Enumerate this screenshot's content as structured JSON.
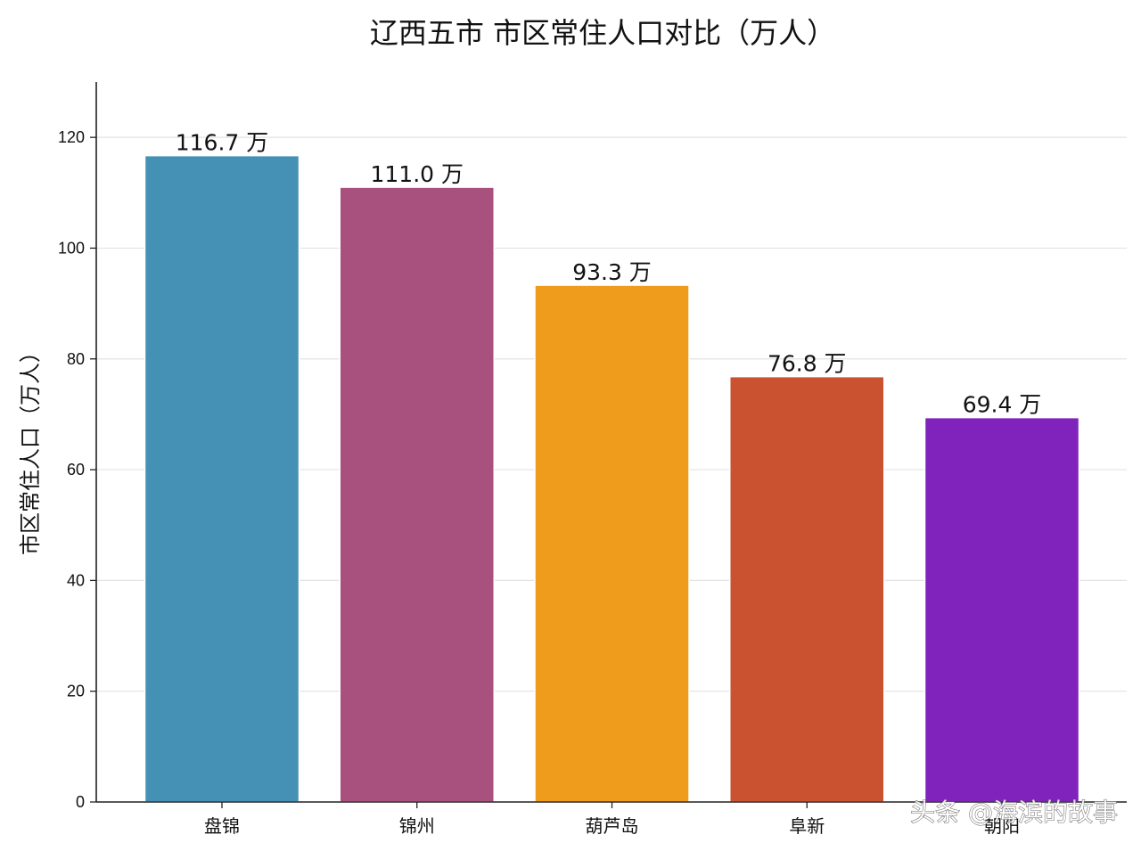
{
  "chart_data": {
    "type": "bar",
    "title": "辽西五市 市区常住人口对比（万人）",
    "xlabel": "",
    "ylabel": "市区常住人口（万人）",
    "categories": [
      "盘锦",
      "锦州",
      "葫芦岛",
      "阜新",
      "朝阳"
    ],
    "values": [
      116.7,
      111.0,
      93.3,
      76.8,
      69.4
    ],
    "value_labels": [
      "116.7 万",
      "111.0 万",
      "93.3 万",
      "76.8 万",
      "69.4 万"
    ],
    "colors": [
      "#4591b5",
      "#a8507e",
      "#ef9c1d",
      "#cb5231",
      "#7f23bc"
    ],
    "ylim": [
      0,
      130
    ],
    "yticks": [
      0,
      20,
      40,
      60,
      80,
      100,
      120
    ],
    "grid": true,
    "legend": "none"
  },
  "watermark": "头条 @海滨的故事"
}
